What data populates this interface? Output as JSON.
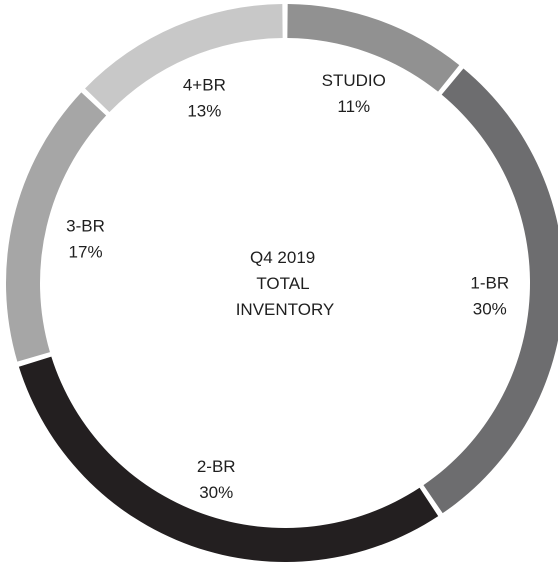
{
  "chart_data": {
    "type": "pie",
    "variant": "donut",
    "center_text": [
      "Q4 2019",
      "TOTAL",
      "INVENTORY"
    ],
    "slices": [
      {
        "label": "STUDIO",
        "value": 11,
        "value_label": "11%",
        "color": "#919191"
      },
      {
        "label": "1-BR",
        "value": 30,
        "value_label": "30%",
        "color": "#6d6d6f"
      },
      {
        "label": "2-BR",
        "value": 30,
        "value_label": "30%",
        "color": "#231f20"
      },
      {
        "label": "3-BR",
        "value": 17,
        "value_label": "17%",
        "color": "#a6a6a6"
      },
      {
        "label": "4+BR",
        "value": 13,
        "value_label": "13%",
        "color": "#c8c8c8"
      }
    ],
    "start": "top",
    "direction": "clockwise"
  }
}
